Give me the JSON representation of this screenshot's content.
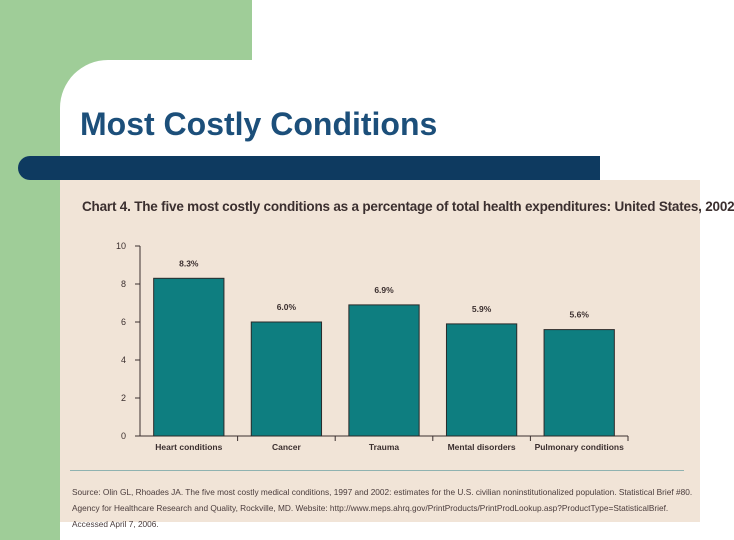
{
  "slide": {
    "title": "Most Costly Conditions",
    "colors": {
      "title": "#1c4f7a",
      "accent_green": "#9fcd98",
      "title_bar": "#0e3a60"
    }
  },
  "chart_data": {
    "type": "bar",
    "title": "Chart 4. The five most costly conditions as a percentage of total health expenditures: United States, 2002",
    "categories": [
      "Heart conditions",
      "Cancer",
      "Trauma",
      "Mental disorders",
      "Pulmonary conditions"
    ],
    "values": [
      8.3,
      6.0,
      6.9,
      5.9,
      5.6
    ],
    "data_labels": [
      "8.3%",
      "6.0%",
      "6.9%",
      "5.9%",
      "5.6%"
    ],
    "yticks": [
      0,
      2,
      4,
      6,
      8,
      10
    ],
    "ylim": [
      0,
      10
    ],
    "xlabel": "",
    "ylabel": "",
    "grid": false,
    "bar_color": "#0e7e80",
    "background_color": "#f1e4d7",
    "source": "Source: Olin GL, Rhoades JA. The five most costly medical conditions, 1997 and 2002: estimates for the U.S. civilian noninstitutionalized population. Statistical Brief #80. Agency for Healthcare Research and Quality, Rockville, MD. Website: http://www.meps.ahrq.gov/PrintProducts/PrintProdLookup.asp?ProductType=StatisticalBrief. Accessed April 7, 2006."
  }
}
